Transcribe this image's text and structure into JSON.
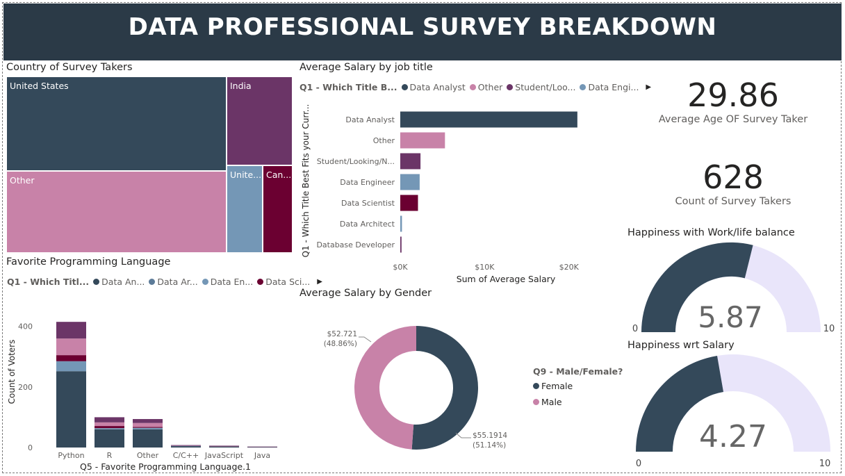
{
  "header": {
    "title": "DATA PROFESSIONAL SURVEY BREAKDOWN"
  },
  "treemap": {
    "title": "Country of Survey Takers",
    "tiles": [
      {
        "label": "United States",
        "color": "#34495a"
      },
      {
        "label": "India",
        "color": "#6b3567"
      },
      {
        "label": "Other",
        "color": "#c882a8"
      },
      {
        "label": "Unite...",
        "color": "#7497b6"
      },
      {
        "label": "Can...",
        "color": "#6b0031"
      }
    ]
  },
  "lang_chart": {
    "title": "Favorite Programming Language",
    "legend_title": "Q1 - Which Titl...",
    "legend_items": [
      {
        "label": "Data An...",
        "color": "#34495a"
      },
      {
        "label": "Data Ar...",
        "color": "#5c7b98"
      },
      {
        "label": "Data En...",
        "color": "#7497b6"
      },
      {
        "label": "Data Sci...",
        "color": "#6b0031"
      }
    ]
  },
  "salary_title_chart": {
    "title": "Average Salary by job title",
    "legend_title": "Q1 - Which Title B...",
    "legend_items": [
      {
        "label": "Data Analyst",
        "color": "#34495a"
      },
      {
        "label": "Other",
        "color": "#c882a8"
      },
      {
        "label": "Student/Loo...",
        "color": "#6b3567"
      },
      {
        "label": "Data Engi...",
        "color": "#7497b6"
      }
    ]
  },
  "gender_chart": {
    "title": "Average Salary by Gender",
    "legend_title": "Q9 - Male/Female?",
    "legend_items": [
      {
        "label": "Female",
        "color": "#34495a"
      },
      {
        "label": "Male",
        "color": "#c882a8"
      }
    ],
    "female_label": "$55.1914",
    "female_pct": "(51.14%)",
    "male_label": "$52.721",
    "male_pct": "(48.86%)"
  },
  "cards": {
    "avg_age": {
      "value": "29.86",
      "label": "Average Age OF Survey Taker"
    },
    "count": {
      "value": "628",
      "label": "Count of Survey Takers"
    }
  },
  "gauges": {
    "work_life": {
      "title": "Happiness with Work/life balance",
      "value_text": "5.87",
      "min": "0",
      "max": "10"
    },
    "salary": {
      "title": "Happiness wrt Salary",
      "value_text": "4.27",
      "min": "0",
      "max": "10"
    }
  },
  "chart_data": [
    {
      "type": "bar",
      "orientation": "horizontal",
      "title": "Average Salary by job title",
      "xlabel": "Sum of Average Salary",
      "ylabel": "Q1 - Which Title Best Fits your Curr...",
      "categories": [
        "Data Analyst",
        "Other",
        "Student/Looking/N...",
        "Data Engineer",
        "Data Scientist",
        "Data Architect",
        "Database Developer"
      ],
      "values": [
        21000,
        5300,
        2400,
        2300,
        2100,
        200,
        150
      ],
      "colors": [
        "#34495a",
        "#c882a8",
        "#6b3567",
        "#7497b6",
        "#6b0031",
        "#7497b6",
        "#6b3567"
      ],
      "xticks": [
        "$0K",
        "$10K",
        "$20K"
      ],
      "xlim": [
        0,
        22000
      ]
    },
    {
      "type": "bar",
      "stacked": true,
      "title": "Favorite Programming Language",
      "xlabel": "Q5 - Favorite Programming Language.1",
      "ylabel": "Count of Voters",
      "categories": [
        "Python",
        "R",
        "Other",
        "C/C++",
        "JavaScript",
        "Java"
      ],
      "yticks": [
        "0",
        "200",
        "400"
      ],
      "ylim": [
        0,
        420
      ],
      "series": [
        {
          "name": "Data An...",
          "color": "#34495a",
          "values": [
            252,
            60,
            60,
            5,
            4,
            2
          ]
        },
        {
          "name": "Data En...",
          "color": "#7497b6",
          "values": [
            33,
            4,
            5,
            1,
            0,
            0
          ]
        },
        {
          "name": "Data Sci...",
          "color": "#6b0031",
          "values": [
            20,
            7,
            3,
            0,
            0,
            0
          ]
        },
        {
          "name": "",
          "color": "#c882a8",
          "values": [
            55,
            12,
            13,
            1,
            1,
            0
          ]
        },
        {
          "name": "",
          "color": "#6b3567",
          "values": [
            55,
            17,
            13,
            1,
            1,
            1
          ]
        }
      ]
    },
    {
      "type": "pie",
      "donut": true,
      "title": "Average Salary by Gender",
      "categories": [
        "Female",
        "Male"
      ],
      "values": [
        55.1914,
        52.721
      ],
      "colors": [
        "#34495a",
        "#c882a8"
      ]
    }
  ]
}
